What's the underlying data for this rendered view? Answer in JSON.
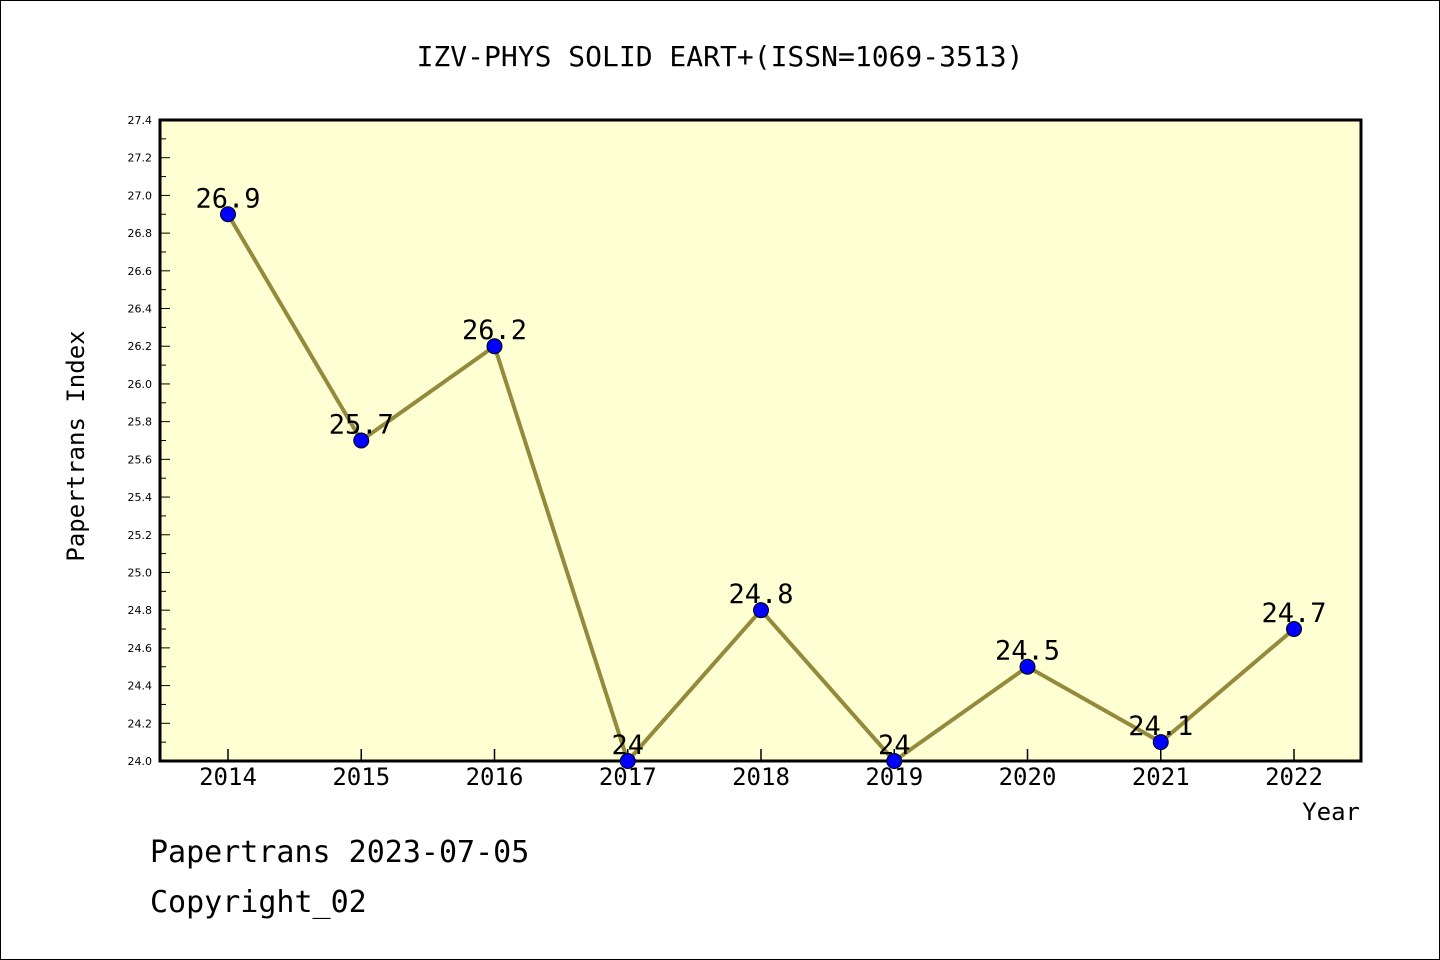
{
  "footer": {
    "line1": "Papertrans 2023-07-05",
    "line2": "Copyright_02"
  },
  "colors": {
    "plot_background": "#ffffd4",
    "line": "#948a3c",
    "marker": "#0000ff"
  },
  "chart_data": {
    "type": "line",
    "title": "IZV-PHYS SOLID EART+(ISSN=1069-3513)",
    "xlabel": "Year",
    "ylabel": "Papertrans Index",
    "categories": [
      "2014",
      "2015",
      "2016",
      "2017",
      "2018",
      "2019",
      "2020",
      "2021",
      "2022"
    ],
    "series": [
      {
        "values": [
          26.9,
          25.7,
          26.2,
          24.0,
          24.8,
          24.0,
          24.5,
          24.1,
          24.7
        ],
        "data_labels": [
          "26.9",
          "25.7",
          "26.2",
          "24",
          "24.8",
          "24",
          "24.5",
          "24.1",
          "24.7"
        ]
      }
    ],
    "ylim": [
      24.0,
      27.4
    ],
    "yticks": [
      "24.0",
      "24.2",
      "24.4",
      "24.6",
      "24.8",
      "25.0",
      "25.2",
      "25.4",
      "25.6",
      "25.8",
      "26.0",
      "26.2",
      "26.4",
      "26.6",
      "26.8",
      "27.0",
      "27.2",
      "27.4"
    ],
    "grid": false,
    "legend": "none"
  }
}
